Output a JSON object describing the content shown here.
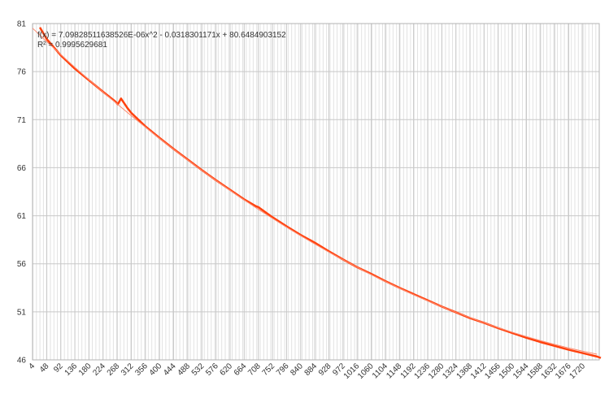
{
  "chart_data": {
    "type": "line",
    "annotations": [
      "f(x) = 7.09828511638526E-06x^2 - 0.0318301171x + 80.6484903152",
      "R² = 0.9995629681"
    ],
    "series": [
      {
        "color": "#ff420e",
        "x": [
          27,
          48,
          92,
          136,
          180,
          224,
          262,
          270,
          280,
          300,
          312,
          356,
          400,
          444,
          488,
          532,
          576,
          620,
          664,
          700,
          708,
          752,
          796,
          840,
          884,
          928,
          972,
          1016,
          1060,
          1104,
          1148,
          1192,
          1236,
          1280,
          1324,
          1368,
          1412,
          1456,
          1500,
          1544,
          1588,
          1632,
          1676,
          1720,
          1764,
          1776
        ],
        "values": [
          80.6,
          79.4,
          77.7,
          76.3,
          75.1,
          73.9,
          72.9,
          72.6,
          73.2,
          72.2,
          71.7,
          70.3,
          69.1,
          67.95,
          66.85,
          65.75,
          64.7,
          63.7,
          62.7,
          62.0,
          61.9,
          60.85,
          59.9,
          59.0,
          58.2,
          57.3,
          56.45,
          55.65,
          54.95,
          54.2,
          53.5,
          52.85,
          52.2,
          51.55,
          50.95,
          50.35,
          49.85,
          49.3,
          48.8,
          48.3,
          47.85,
          47.45,
          47.05,
          46.7,
          46.35,
          46.2
        ]
      },
      {
        "color": "#ff8a6e",
        "x": [
          4,
          48,
          92,
          136,
          180,
          224,
          268,
          312,
          356,
          400,
          444,
          488,
          532,
          576,
          620,
          664,
          708,
          752,
          796,
          840,
          884,
          928,
          972,
          1016,
          1060,
          1104,
          1148,
          1192,
          1236,
          1280,
          1324,
          1368,
          1412,
          1456,
          1500,
          1544,
          1588,
          1632,
          1676,
          1720,
          1764
        ],
        "values": [
          80.52,
          79.14,
          77.78,
          76.45,
          75.15,
          73.87,
          72.63,
          71.41,
          70.22,
          69.05,
          67.92,
          66.81,
          65.72,
          64.67,
          63.64,
          62.64,
          61.67,
          60.73,
          59.81,
          58.92,
          58.06,
          57.22,
          56.42,
          55.64,
          54.88,
          54.16,
          53.46,
          52.79,
          52.15,
          51.54,
          50.95,
          50.39,
          49.86,
          49.35,
          48.87,
          48.42,
          48.0,
          47.61,
          47.24,
          46.9,
          46.59
        ]
      }
    ],
    "xlim": [
      4,
      1771
    ],
    "xticks": [
      4,
      48,
      92,
      136,
      180,
      224,
      268,
      312,
      356,
      400,
      444,
      488,
      532,
      576,
      620,
      664,
      708,
      752,
      796,
      840,
      884,
      928,
      972,
      1016,
      1060,
      1104,
      1148,
      1192,
      1236,
      1280,
      1324,
      1368,
      1412,
      1456,
      1500,
      1544,
      1588,
      1632,
      1676,
      1720
    ],
    "ylim": [
      46,
      81
    ],
    "yticks": [
      46,
      51,
      56,
      61,
      66,
      71,
      76,
      81
    ],
    "grid": true
  }
}
